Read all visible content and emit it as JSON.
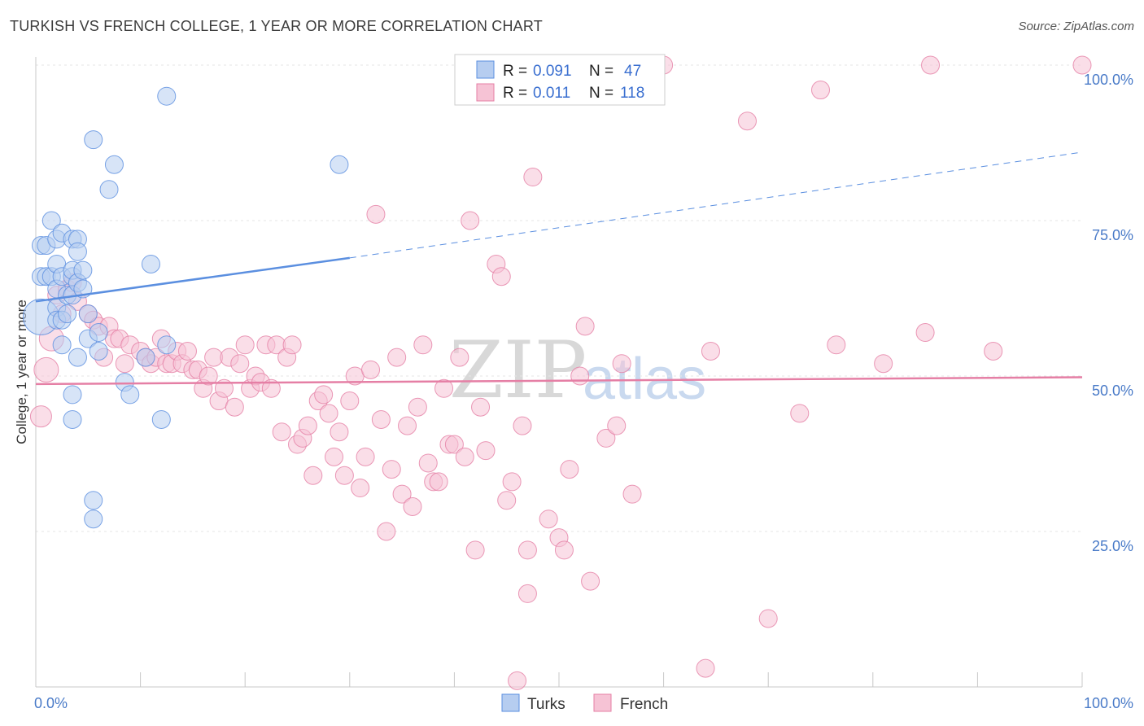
{
  "title": "TURKISH VS FRENCH COLLEGE, 1 YEAR OR MORE CORRELATION CHART",
  "source": "Source: ZipAtlas.com",
  "watermark": {
    "zip": "ZIP",
    "atlas": "atlas"
  },
  "chart_data": {
    "type": "scatter",
    "xlabel": "",
    "ylabel": "College, 1 year or more",
    "xlim": [
      0,
      100
    ],
    "ylim": [
      0,
      100
    ],
    "x_tick_labels": {
      "min": "0.0%",
      "max": "100.0%"
    },
    "y_tick_labels": [
      "25.0%",
      "50.0%",
      "75.0%",
      "100.0%"
    ],
    "y_ticks": [
      25,
      50,
      75,
      100
    ],
    "legend": {
      "r_label": "R =",
      "n_label": "N =",
      "entries": [
        {
          "name": "Turks",
          "r": "0.091",
          "n": "47",
          "color": "#5b8fe0",
          "fill": "#b6cdf0"
        },
        {
          "name": "French",
          "r": "0.011",
          "n": "118",
          "color": "#e57fa5",
          "fill": "#f6c3d5"
        }
      ]
    },
    "series": [
      {
        "name": "Turks",
        "color": "#5b8fe0",
        "fill": "#b6cdf0",
        "trend": {
          "x0": 0,
          "y0": 62.0,
          "x1": 30,
          "y1": 69.0,
          "dash_to_x": 100,
          "dash_to_y": 86.0
        },
        "points": [
          [
            0.5,
            59.5,
            22
          ],
          [
            0.5,
            66,
            11
          ],
          [
            0.5,
            71,
            11
          ],
          [
            1,
            66,
            11
          ],
          [
            1,
            71,
            11
          ],
          [
            1.5,
            75,
            11
          ],
          [
            1.5,
            66,
            11
          ],
          [
            2,
            61,
            11
          ],
          [
            2,
            59,
            11
          ],
          [
            2,
            64,
            11
          ],
          [
            2,
            72,
            11
          ],
          [
            2,
            68,
            11
          ],
          [
            2.5,
            66,
            11
          ],
          [
            2.5,
            59,
            11
          ],
          [
            2.5,
            55,
            11
          ],
          [
            2.5,
            73,
            11
          ],
          [
            3,
            63,
            11
          ],
          [
            3,
            60,
            11
          ],
          [
            3.5,
            66,
            11
          ],
          [
            3.5,
            72,
            11
          ],
          [
            3.5,
            67,
            11
          ],
          [
            3.5,
            63,
            11
          ],
          [
            3.5,
            43,
            11
          ],
          [
            3.5,
            47,
            11
          ],
          [
            4,
            72,
            11
          ],
          [
            4,
            70,
            11
          ],
          [
            4,
            53,
            11
          ],
          [
            4,
            65,
            11
          ],
          [
            4.5,
            67,
            11
          ],
          [
            4.5,
            64,
            11
          ],
          [
            5,
            56,
            11
          ],
          [
            5,
            60,
            11
          ],
          [
            5.5,
            88,
            11
          ],
          [
            5.5,
            30,
            11
          ],
          [
            5.5,
            27,
            11
          ],
          [
            6,
            54,
            11
          ],
          [
            6,
            57,
            11
          ],
          [
            7,
            80,
            11
          ],
          [
            7.5,
            84,
            11
          ],
          [
            8.5,
            49,
            11
          ],
          [
            9,
            47,
            11
          ],
          [
            10.5,
            53,
            11
          ],
          [
            11,
            68,
            11
          ],
          [
            12,
            43,
            11
          ],
          [
            12.5,
            55,
            11
          ],
          [
            12.5,
            95,
            11
          ],
          [
            29,
            84,
            11
          ]
        ]
      },
      {
        "name": "French",
        "color": "#e57fa5",
        "fill": "#f6c3d5",
        "trend": {
          "x0": 0,
          "y0": 48.7,
          "x1": 100,
          "y1": 49.8
        },
        "points": [
          [
            0.5,
            43.5,
            13
          ],
          [
            1,
            51,
            15
          ],
          [
            1.5,
            56,
            15
          ],
          [
            2,
            63,
            11
          ],
          [
            2.5,
            60,
            11
          ],
          [
            3,
            64,
            11
          ],
          [
            3.5,
            65,
            11
          ],
          [
            4,
            62,
            11
          ],
          [
            5,
            60,
            11
          ],
          [
            5.5,
            59,
            11
          ],
          [
            6,
            58,
            11
          ],
          [
            6.5,
            53,
            11
          ],
          [
            7,
            58,
            11
          ],
          [
            7.5,
            56,
            11
          ],
          [
            8,
            56,
            11
          ],
          [
            8.5,
            52,
            11
          ],
          [
            9,
            55,
            11
          ],
          [
            10,
            54,
            11
          ],
          [
            10.5,
            53,
            11
          ],
          [
            11,
            52,
            11
          ],
          [
            11.5,
            53,
            11
          ],
          [
            12,
            56,
            11
          ],
          [
            12.5,
            52,
            11
          ],
          [
            13,
            52,
            11
          ],
          [
            13.5,
            54,
            11
          ],
          [
            14,
            52,
            11
          ],
          [
            14.5,
            54,
            11
          ],
          [
            15,
            51,
            11
          ],
          [
            15.5,
            51,
            11
          ],
          [
            16,
            48,
            11
          ],
          [
            16.5,
            50,
            11
          ],
          [
            17,
            53,
            11
          ],
          [
            17.5,
            46,
            11
          ],
          [
            18,
            48,
            11
          ],
          [
            18.5,
            53,
            11
          ],
          [
            19,
            45,
            11
          ],
          [
            19.5,
            52,
            11
          ],
          [
            20,
            55,
            11
          ],
          [
            20.5,
            48,
            11
          ],
          [
            21,
            50,
            11
          ],
          [
            21.5,
            49,
            11
          ],
          [
            22,
            55,
            11
          ],
          [
            22.5,
            48,
            11
          ],
          [
            23,
            55,
            11
          ],
          [
            23.5,
            41,
            11
          ],
          [
            24,
            53,
            11
          ],
          [
            24.5,
            55,
            11
          ],
          [
            25,
            39,
            11
          ],
          [
            25.5,
            40,
            11
          ],
          [
            26,
            42,
            11
          ],
          [
            26.5,
            34,
            11
          ],
          [
            27,
            46,
            11
          ],
          [
            27.5,
            47,
            11
          ],
          [
            28,
            44,
            11
          ],
          [
            28.5,
            37,
            11
          ],
          [
            29,
            41,
            11
          ],
          [
            29.5,
            34,
            11
          ],
          [
            30,
            46,
            11
          ],
          [
            30.5,
            50,
            11
          ],
          [
            31,
            32,
            11
          ],
          [
            31.5,
            37,
            11
          ],
          [
            32,
            51,
            11
          ],
          [
            32.5,
            76,
            11
          ],
          [
            33,
            43,
            11
          ],
          [
            33.5,
            25,
            11
          ],
          [
            34,
            35,
            11
          ],
          [
            34.5,
            53,
            11
          ],
          [
            35,
            31,
            11
          ],
          [
            35.5,
            42,
            11
          ],
          [
            36,
            29,
            11
          ],
          [
            36.5,
            45,
            11
          ],
          [
            37,
            55,
            11
          ],
          [
            37.5,
            36,
            11
          ],
          [
            38,
            33,
            11
          ],
          [
            38.5,
            33,
            11
          ],
          [
            39,
            48,
            11
          ],
          [
            39.5,
            39,
            11
          ],
          [
            40,
            39,
            11
          ],
          [
            40.5,
            53,
            11
          ],
          [
            41,
            37,
            11
          ],
          [
            41.5,
            75,
            11
          ],
          [
            42,
            22,
            11
          ],
          [
            42.5,
            45,
            11
          ],
          [
            43,
            38,
            11
          ],
          [
            44,
            68,
            11
          ],
          [
            44.5,
            66,
            11
          ],
          [
            45,
            30,
            11
          ],
          [
            45.5,
            33,
            11
          ],
          [
            46,
            1,
            11
          ],
          [
            46.5,
            42,
            11
          ],
          [
            47,
            22,
            11
          ],
          [
            47,
            15,
            11
          ],
          [
            47.5,
            82,
            11
          ],
          [
            49,
            27,
            11
          ],
          [
            50,
            24,
            11
          ],
          [
            50.5,
            22,
            11
          ],
          [
            51,
            35,
            11
          ],
          [
            52,
            50,
            11
          ],
          [
            52.5,
            58,
            11
          ],
          [
            53,
            17,
            11
          ],
          [
            54.5,
            40,
            11
          ],
          [
            55.5,
            42,
            11
          ],
          [
            56,
            52,
            11
          ],
          [
            57,
            31,
            11
          ],
          [
            60,
            100,
            11
          ],
          [
            64,
            3,
            11
          ],
          [
            64.5,
            54,
            11
          ],
          [
            68,
            91,
            11
          ],
          [
            70,
            11,
            11
          ],
          [
            73,
            44,
            11
          ],
          [
            75,
            96,
            11
          ],
          [
            76.5,
            55,
            11
          ],
          [
            81,
            52,
            11
          ],
          [
            85,
            57,
            11
          ],
          [
            85.5,
            100,
            11
          ],
          [
            91.5,
            54,
            11
          ],
          [
            100,
            100,
            11
          ]
        ]
      }
    ]
  }
}
